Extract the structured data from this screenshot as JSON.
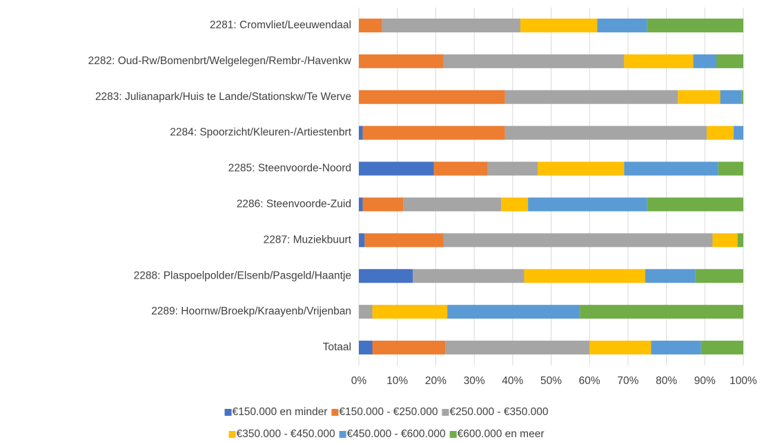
{
  "chart_data": {
    "type": "stacked_barh",
    "categories": [
      "2281: Cromvliet/Leeuwendaal",
      "2282: Oud-Rw/Bomenbrt/Welgelegen/Rembr-/Havenkw",
      "2283: Julianapark/Huis te Lande/Stationskw/Te Werve",
      "2284: Spoorzicht/Kleuren-/Artiestenbrt",
      "2285: Steenvoorde-Noord",
      "2286: Steenvoorde-Zuid",
      "2287: Muziekbuurt",
      "2288: Plaspoelpolder/Elsenb/Pasgeld/Haantje",
      "2289: Hoornw/Broekp/Kraayenb/Vrijenban",
      "Totaal"
    ],
    "series": [
      {
        "name": "€150.000 en minder",
        "color": "#4472c4",
        "values": [
          0,
          0,
          0,
          1,
          19.5,
          1,
          1.5,
          14,
          0,
          3.5
        ]
      },
      {
        "name": "€150.000 - €250.000",
        "color": "#ed7d31",
        "values": [
          6,
          22,
          38,
          37,
          14,
          10.5,
          20.5,
          0,
          0,
          19
        ]
      },
      {
        "name": "€250.000 - €350.000",
        "color": "#a5a5a5",
        "values": [
          36,
          47,
          45,
          52.5,
          13,
          25.5,
          70,
          29,
          3.5,
          37.5
        ]
      },
      {
        "name": "€350.000 - €450.000",
        "color": "#ffc000",
        "values": [
          20,
          18,
          11,
          7,
          22.5,
          7,
          6.5,
          31.5,
          19.5,
          16
        ]
      },
      {
        "name": "€450.000 - €600.000",
        "color": "#5b9bd5",
        "values": [
          13,
          6,
          5.5,
          2.5,
          24.5,
          31,
          0,
          13,
          34.5,
          13
        ]
      },
      {
        "name": "€600.000 en meer",
        "color": "#70ad47",
        "values": [
          25,
          7,
          0.5,
          0,
          6.5,
          25,
          1.5,
          12.5,
          42.5,
          11
        ]
      }
    ],
    "xlim": [
      0,
      100
    ],
    "xticks": [
      {
        "value": 0,
        "label": "0%"
      },
      {
        "value": 10,
        "label": "10%"
      },
      {
        "value": 20,
        "label": "20%"
      },
      {
        "value": 30,
        "label": "30%"
      },
      {
        "value": 40,
        "label": "40%"
      },
      {
        "value": 50,
        "label": "50%"
      },
      {
        "value": 60,
        "label": "60%"
      },
      {
        "value": 70,
        "label": "70%"
      },
      {
        "value": 80,
        "label": "80%"
      },
      {
        "value": 90,
        "label": "90%"
      },
      {
        "value": 100,
        "label": "100%"
      }
    ],
    "grid": true,
    "legend": "bottom"
  }
}
